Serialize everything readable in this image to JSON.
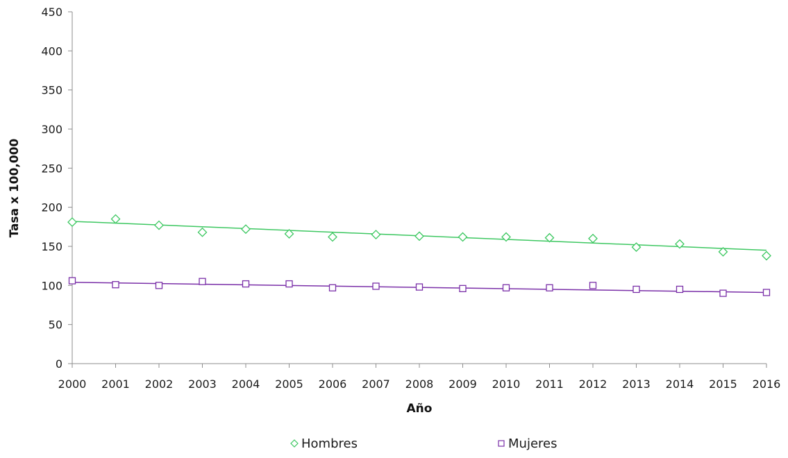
{
  "chart_data": {
    "type": "scatter",
    "title": "",
    "xlabel": "Año",
    "ylabel": "Tasa x 100,000",
    "x": [
      2000,
      2001,
      2002,
      2003,
      2004,
      2005,
      2006,
      2007,
      2008,
      2009,
      2010,
      2011,
      2012,
      2013,
      2014,
      2015,
      2016
    ],
    "xlim": [
      2000,
      2016
    ],
    "ylim": [
      0,
      450
    ],
    "yticks": [
      0,
      50,
      100,
      150,
      200,
      250,
      300,
      350,
      400,
      450
    ],
    "grid": false,
    "legend_position": "bottom",
    "series": [
      {
        "name": "Hombres",
        "marker": "diamond",
        "color": "#3cc760",
        "values": [
          181,
          185,
          177,
          168,
          172,
          166,
          162,
          165,
          163,
          162,
          162,
          161,
          160,
          149,
          153,
          143,
          138
        ],
        "trendline": [
          182,
          145
        ]
      },
      {
        "name": "Mujeres",
        "marker": "square",
        "color": "#7a2fa8",
        "values": [
          106,
          101,
          100,
          105,
          102,
          102,
          97,
          99,
          98,
          96,
          97,
          97,
          100,
          95,
          95,
          90,
          91
        ],
        "trendline": [
          104,
          91
        ]
      }
    ]
  }
}
